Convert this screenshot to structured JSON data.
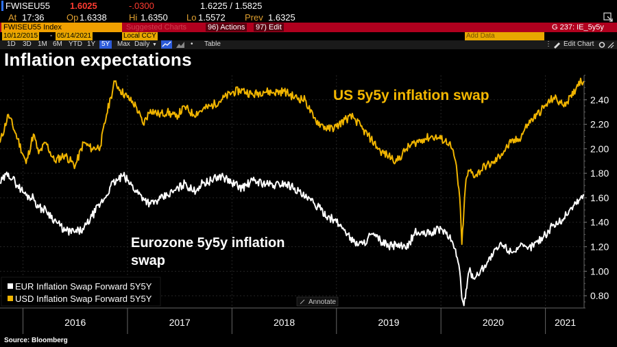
{
  "header": {
    "ticker": "FWISEU55",
    "last": "1.6025",
    "change": "-.0300",
    "bid_ask": "1.6225 / 1.5825",
    "at_label": "At",
    "time": "17:36",
    "op_label": "Op",
    "open": "1.6338",
    "hi_label": "Hi",
    "high": "1.6350",
    "lo_label": "Lo",
    "low": "1.5572",
    "prev_label": "Prev",
    "prev": "1.6325",
    "expand_icon": "expand-icon"
  },
  "toolbar": {
    "index_name": "FWISEU55 Index",
    "suggested": "Suggested Charts",
    "actions": "96) Actions",
    "edit": "97) Edit",
    "page": "G 237: IE_5y5y"
  },
  "controls": {
    "start_date": "10/12/2015",
    "end_date": "05/14/2021",
    "currency": "Local CCY",
    "add_data": "Add Data",
    "edit_chart": "Edit Chart",
    "periods": [
      "1D",
      "3D",
      "1M",
      "6M",
      "YTD",
      "1Y",
      "5Y",
      "Max"
    ],
    "selected_period": "5Y",
    "frequency": "Daily",
    "table": "Table"
  },
  "title": "Inflation expectations",
  "source": "Source: Bloomberg",
  "colors": {
    "usd": "#f0b400",
    "eur": "#ffffff",
    "bg": "#000000",
    "accent_red": "#b0001e"
  },
  "chart_data": {
    "type": "line",
    "title": "Inflation expectations",
    "x_ticks": [
      "2016",
      "2017",
      "2018",
      "2019",
      "2020",
      "2021"
    ],
    "y_ticks": [
      "0.80",
      "1.00",
      "1.20",
      "1.40",
      "1.60",
      "1.80",
      "2.00",
      "2.20",
      "2.40"
    ],
    "ylim": [
      0.7,
      2.6
    ],
    "xlim": [
      2015.78,
      2021.37
    ],
    "legend": [
      "EUR Inflation Swap Forward 5Y5Y",
      "USD Inflation Swap Forward 5Y5Y"
    ],
    "legend_position": "bottom-left",
    "annotate_label": "Annotate",
    "annotations": {
      "us": "US 5y5y inflation swap",
      "eu_line1": "Eurozone 5y5y inflation",
      "eu_line2": "swap"
    },
    "series": [
      {
        "name": "USD Inflation Swap Forward 5Y5Y",
        "color": "#f0b400",
        "x": [
          2015.78,
          2015.86,
          2015.95,
          2016.03,
          2016.1,
          2016.15,
          2016.22,
          2016.3,
          2016.4,
          2016.5,
          2016.58,
          2016.66,
          2016.74,
          2016.8,
          2016.84,
          2016.88,
          2016.93,
          2017.0,
          2017.08,
          2017.15,
          2017.22,
          2017.3,
          2017.38,
          2017.46,
          2017.55,
          2017.63,
          2017.72,
          2017.8,
          2017.9,
          2018.0,
          2018.1,
          2018.2,
          2018.3,
          2018.4,
          2018.5,
          2018.6,
          2018.7,
          2018.78,
          2018.85,
          2018.92,
          2019.0,
          2019.08,
          2019.16,
          2019.25,
          2019.33,
          2019.42,
          2019.5,
          2019.58,
          2019.67,
          2019.75,
          2019.83,
          2019.92,
          2020.0,
          2020.08,
          2020.14,
          2020.18,
          2020.2,
          2020.22,
          2020.24,
          2020.27,
          2020.33,
          2020.42,
          2020.5,
          2020.58,
          2020.67,
          2020.75,
          2020.83,
          2020.92,
          2021.0,
          2021.08,
          2021.16,
          2021.25,
          2021.32,
          2021.37
        ],
        "values": [
          2.05,
          2.28,
          2.08,
          1.88,
          2.12,
          1.96,
          2.05,
          1.9,
          1.95,
          1.86,
          2.05,
          2.0,
          2.02,
          2.28,
          2.42,
          2.55,
          2.48,
          2.42,
          2.35,
          2.2,
          2.32,
          2.28,
          2.3,
          2.26,
          2.34,
          2.28,
          2.32,
          2.35,
          2.4,
          2.46,
          2.48,
          2.44,
          2.47,
          2.46,
          2.47,
          2.42,
          2.4,
          2.25,
          2.2,
          2.16,
          2.18,
          2.24,
          2.26,
          2.16,
          2.08,
          1.98,
          1.94,
          1.9,
          2.0,
          2.05,
          2.08,
          2.1,
          2.08,
          2.05,
          1.9,
          1.6,
          1.22,
          1.5,
          1.75,
          1.82,
          1.78,
          1.86,
          1.88,
          1.96,
          2.05,
          2.08,
          2.2,
          2.28,
          2.35,
          2.42,
          2.36,
          2.42,
          2.55,
          2.55
        ]
      },
      {
        "name": "EUR Inflation Swap Forward 5Y5Y",
        "color": "#ffffff",
        "x": [
          2015.78,
          2015.86,
          2015.95,
          2016.03,
          2016.1,
          2016.15,
          2016.22,
          2016.3,
          2016.4,
          2016.5,
          2016.58,
          2016.66,
          2016.74,
          2016.8,
          2016.84,
          2016.9,
          2016.96,
          2017.0,
          2017.08,
          2017.15,
          2017.22,
          2017.3,
          2017.38,
          2017.46,
          2017.55,
          2017.63,
          2017.72,
          2017.8,
          2017.9,
          2018.0,
          2018.1,
          2018.2,
          2018.3,
          2018.4,
          2018.5,
          2018.6,
          2018.7,
          2018.78,
          2018.85,
          2018.92,
          2019.0,
          2019.08,
          2019.16,
          2019.25,
          2019.33,
          2019.42,
          2019.5,
          2019.58,
          2019.67,
          2019.75,
          2019.83,
          2019.92,
          2020.0,
          2020.08,
          2020.14,
          2020.18,
          2020.2,
          2020.22,
          2020.24,
          2020.27,
          2020.33,
          2020.42,
          2020.5,
          2020.58,
          2020.67,
          2020.75,
          2020.83,
          2020.92,
          2021.0,
          2021.08,
          2021.16,
          2021.25,
          2021.32,
          2021.37
        ],
        "values": [
          1.72,
          1.8,
          1.7,
          1.62,
          1.6,
          1.52,
          1.5,
          1.42,
          1.33,
          1.32,
          1.34,
          1.45,
          1.55,
          1.62,
          1.7,
          1.74,
          1.78,
          1.74,
          1.66,
          1.6,
          1.55,
          1.58,
          1.62,
          1.66,
          1.72,
          1.65,
          1.72,
          1.74,
          1.78,
          1.72,
          1.68,
          1.74,
          1.72,
          1.7,
          1.72,
          1.68,
          1.6,
          1.56,
          1.5,
          1.45,
          1.4,
          1.34,
          1.24,
          1.22,
          1.3,
          1.25,
          1.2,
          1.22,
          1.18,
          1.32,
          1.3,
          1.32,
          1.35,
          1.28,
          1.18,
          1.0,
          0.78,
          0.72,
          0.85,
          1.0,
          0.95,
          1.05,
          1.14,
          1.22,
          1.16,
          1.2,
          1.18,
          1.24,
          1.3,
          1.38,
          1.42,
          1.52,
          1.58,
          1.62
        ]
      }
    ]
  }
}
